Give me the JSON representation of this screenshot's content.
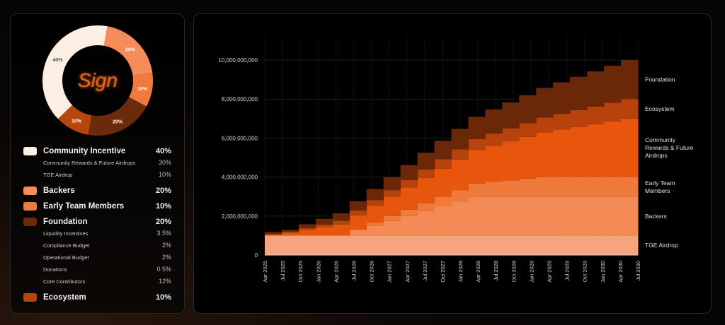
{
  "logo_text": "Sign",
  "donut": {
    "slices": [
      {
        "name": "Backers",
        "value": 20,
        "label": "20%",
        "color": "#F58C5A"
      },
      {
        "name": "Early Team Members",
        "value": 10,
        "label": "10%",
        "color": "#F07A3E"
      },
      {
        "name": "Foundation",
        "value": 20,
        "label": "20%",
        "color": "#6B2A0A"
      },
      {
        "name": "Ecosystem",
        "value": 10,
        "label": "10%",
        "color": "#B8440E"
      },
      {
        "name": "Community Incentive",
        "value": 40,
        "label": "40%",
        "color": "#FBEFE4"
      }
    ]
  },
  "legend": [
    {
      "label": "Community Incentive",
      "value": "40%",
      "color": "#FBEFE4",
      "subs": [
        {
          "label": "Community Rewards & Future Airdrops",
          "value": "30%"
        },
        {
          "label": "TGE Airdrop",
          "value": "10%"
        }
      ]
    },
    {
      "label": "Backers",
      "value": "20%",
      "color": "#F58C5A",
      "subs": []
    },
    {
      "label": "Early Team Members",
      "value": "10%",
      "color": "#F07A3E",
      "subs": []
    },
    {
      "label": "Foundation",
      "value": "20%",
      "color": "#6B2A0A",
      "subs": [
        {
          "label": "Liquidity Incentives",
          "value": "3.5%"
        },
        {
          "label": "Compliance Budget",
          "value": "2%"
        },
        {
          "label": "Operational Budget",
          "value": "2%"
        },
        {
          "label": "Donations",
          "value": "0.5%"
        },
        {
          "label": "Core Contributors",
          "value": "12%"
        }
      ]
    },
    {
      "label": "Ecosystem",
      "value": "10%",
      "color": "#B8440E",
      "subs": []
    }
  ],
  "chart_data": {
    "type": "area",
    "stacked": true,
    "step": true,
    "title": "",
    "xlabel": "",
    "ylabel": "",
    "y_unit": "billions of tokens",
    "ylim": [
      0,
      10
    ],
    "yticks": [
      0,
      2,
      4,
      6,
      8,
      10
    ],
    "ytick_labels": [
      "0",
      "2,000,000,000",
      "4,000,000,000",
      "6,000,000,000",
      "8,000,000,000",
      "10,000,000,000"
    ],
    "grid": true,
    "legend_placement": "right",
    "x": [
      "Apr 2025",
      "Jul 2025",
      "Oct 2025",
      "Jan 2026",
      "Apr 2026",
      "Jul 2026",
      "Oct 2026",
      "Jan 2027",
      "Apr 2027",
      "Jul 2027",
      "Oct 2027",
      "Jan 2028",
      "Apr 2028",
      "Jul 2028",
      "Oct 2028",
      "Jan 2029",
      "Apr 2029",
      "Jul 2029",
      "Oct 2029",
      "Jan 2030",
      "Apr 2030",
      "Jul 2030"
    ],
    "series": [
      {
        "name": "TGE Airdrop",
        "label": "TGE Airdrop",
        "color": "#F5A47E",
        "values": [
          1,
          1,
          1,
          1,
          1,
          1,
          1,
          1,
          1,
          1,
          1,
          1,
          1,
          1,
          1,
          1,
          1,
          1,
          1,
          1,
          1,
          1
        ]
      },
      {
        "name": "Backers",
        "label": "Backers",
        "color": "#F48A55",
        "values": [
          0,
          0,
          0,
          0,
          0,
          0.25,
          0.5,
          0.75,
          1,
          1.25,
          1.5,
          1.75,
          2,
          2,
          2,
          2,
          2,
          2,
          2,
          2,
          2,
          2
        ]
      },
      {
        "name": "Early Team Members",
        "label": "Early Team Members",
        "color": "#F07A3C",
        "values": [
          0,
          0,
          0,
          0,
          0,
          0.08,
          0.17,
          0.25,
          0.33,
          0.42,
          0.5,
          0.58,
          0.67,
          0.75,
          0.83,
          0.92,
          1,
          1,
          1,
          1,
          1,
          1
        ]
      },
      {
        "name": "Community Rewards & Future Airdrops",
        "label": "Community Rewards & Future Airdrops",
        "color": "#E8560E",
        "values": [
          0.05,
          0.14,
          0.29,
          0.43,
          0.57,
          0.71,
          0.86,
          1.0,
          1.14,
          1.29,
          1.43,
          1.57,
          1.71,
          1.86,
          2.0,
          2.14,
          2.29,
          2.43,
          2.57,
          2.71,
          2.86,
          3.0
        ]
      },
      {
        "name": "Ecosystem",
        "label": "Ecosystem",
        "color": "#B8420B",
        "values": [
          0.03,
          0.05,
          0.1,
          0.14,
          0.19,
          0.24,
          0.29,
          0.33,
          0.38,
          0.43,
          0.48,
          0.52,
          0.57,
          0.62,
          0.67,
          0.71,
          0.76,
          0.81,
          0.86,
          0.9,
          0.95,
          1.0
        ]
      },
      {
        "name": "Foundation",
        "label": "Foundation",
        "color": "#6B2808",
        "values": [
          0.1,
          0.1,
          0.19,
          0.29,
          0.38,
          0.48,
          0.57,
          0.67,
          0.76,
          0.86,
          0.95,
          1.05,
          1.14,
          1.24,
          1.33,
          1.43,
          1.52,
          1.62,
          1.71,
          1.81,
          1.9,
          2.0
        ]
      }
    ]
  }
}
